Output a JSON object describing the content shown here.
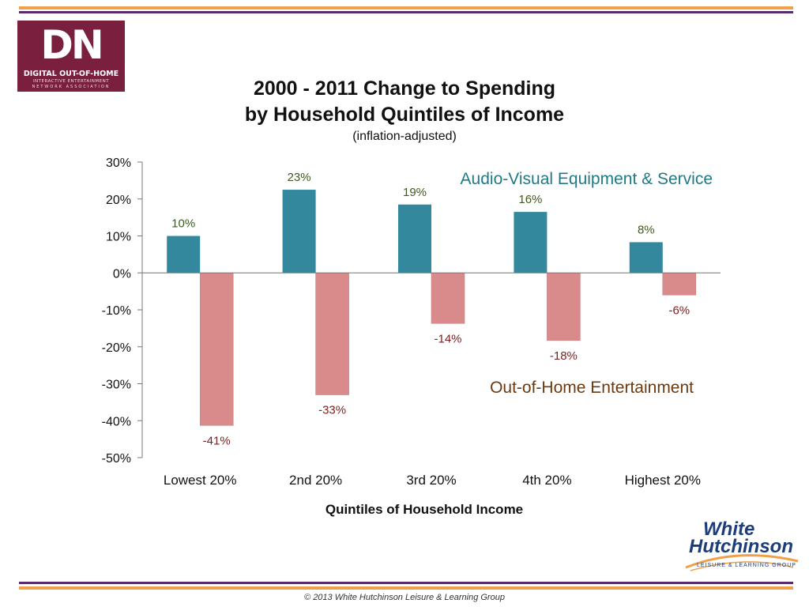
{
  "logo_dn": {
    "mark": "DN",
    "line1": "DIGITAL OUT-OF-HOME",
    "line2": "INTERACTIVE ENTERTAINMENT",
    "line3": "NETWORK ASSOCIATION"
  },
  "logo_wh": {
    "line1": "White",
    "line2": "Hutchinson",
    "line3": "LEISURE & LEARNING GROUP"
  },
  "footer": "© 2013 White Hutchinson Leisure & Learning Group",
  "colors": {
    "av": "#34889e",
    "ooh": "#d98b8b",
    "av_text": "#1f7a86",
    "ooh_text": "#6b3a12",
    "av_label": "#3c5a1e",
    "ooh_label": "#7a1f1f",
    "rule_orange": "#f0a04b",
    "rule_purple": "#5a2a6e"
  },
  "chart_data": {
    "type": "bar",
    "title": "2000 - 2011 Change to Spending",
    "title_line2": "by Household Quintiles of Income",
    "subtitle": "(inflation-adjusted)",
    "xlabel": "Quintiles of Household Income",
    "ylabel": "",
    "categories": [
      "Lowest 20%",
      "2nd 20%",
      "3rd 20%",
      "4th 20%",
      "Highest 20%"
    ],
    "series": [
      {
        "name": "Audio-Visual Equipment & Service",
        "values": [
          10,
          23,
          19,
          16,
          8
        ],
        "plotted_values": [
          10,
          22.5,
          18.5,
          16.5,
          8.3
        ],
        "labels": [
          "10%",
          "23%",
          "19%",
          "16%",
          "8%"
        ]
      },
      {
        "name": "Out-of-Home Entertainment",
        "values": [
          -41,
          -33,
          -14,
          -18,
          -6
        ],
        "plotted_values": [
          -41.3,
          -33,
          -13.7,
          -18.3,
          -6
        ],
        "labels": [
          "-41%",
          "-33%",
          "-14%",
          "-18%",
          "-6%"
        ]
      }
    ],
    "ylim": [
      -50,
      30
    ],
    "yticks": [
      30,
      20,
      10,
      0,
      -10,
      -20,
      -30,
      -40,
      -50
    ],
    "ytick_labels": [
      "30%",
      "20%",
      "10%",
      "0%",
      "-10%",
      "-20%",
      "-30%",
      "-40%",
      "-50%"
    ],
    "grid": false,
    "legend": "inline"
  }
}
